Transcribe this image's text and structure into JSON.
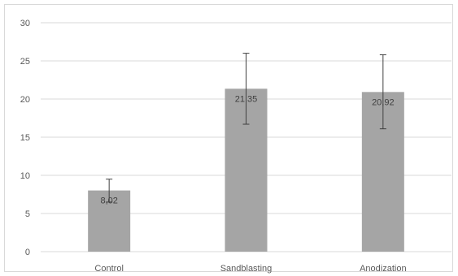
{
  "chart_data": {
    "type": "bar",
    "title": "",
    "xlabel": "",
    "ylabel": "",
    "categories": [
      "Control",
      "Sandblasting",
      "Anodization"
    ],
    "values": [
      8.02,
      21.35,
      20.92
    ],
    "data_labels": [
      "8,02",
      "21,35",
      "20,92"
    ],
    "error_bars": [
      {
        "low": 6.5,
        "high": 9.5
      },
      {
        "low": 16.7,
        "high": 26.0
      },
      {
        "low": 16.1,
        "high": 25.8
      }
    ],
    "ylim": [
      0,
      30
    ],
    "yticks": [
      0,
      5,
      10,
      15,
      20,
      25,
      30
    ],
    "ytick_labels": [
      "0",
      "5",
      "10",
      "15",
      "20",
      "25",
      "30"
    ],
    "grid": true,
    "legend": "none",
    "colors": {
      "bar": "#a5a5a5",
      "grid": "#d9d9d9",
      "error_bar": "#404040",
      "axis_text": "#595959"
    }
  }
}
